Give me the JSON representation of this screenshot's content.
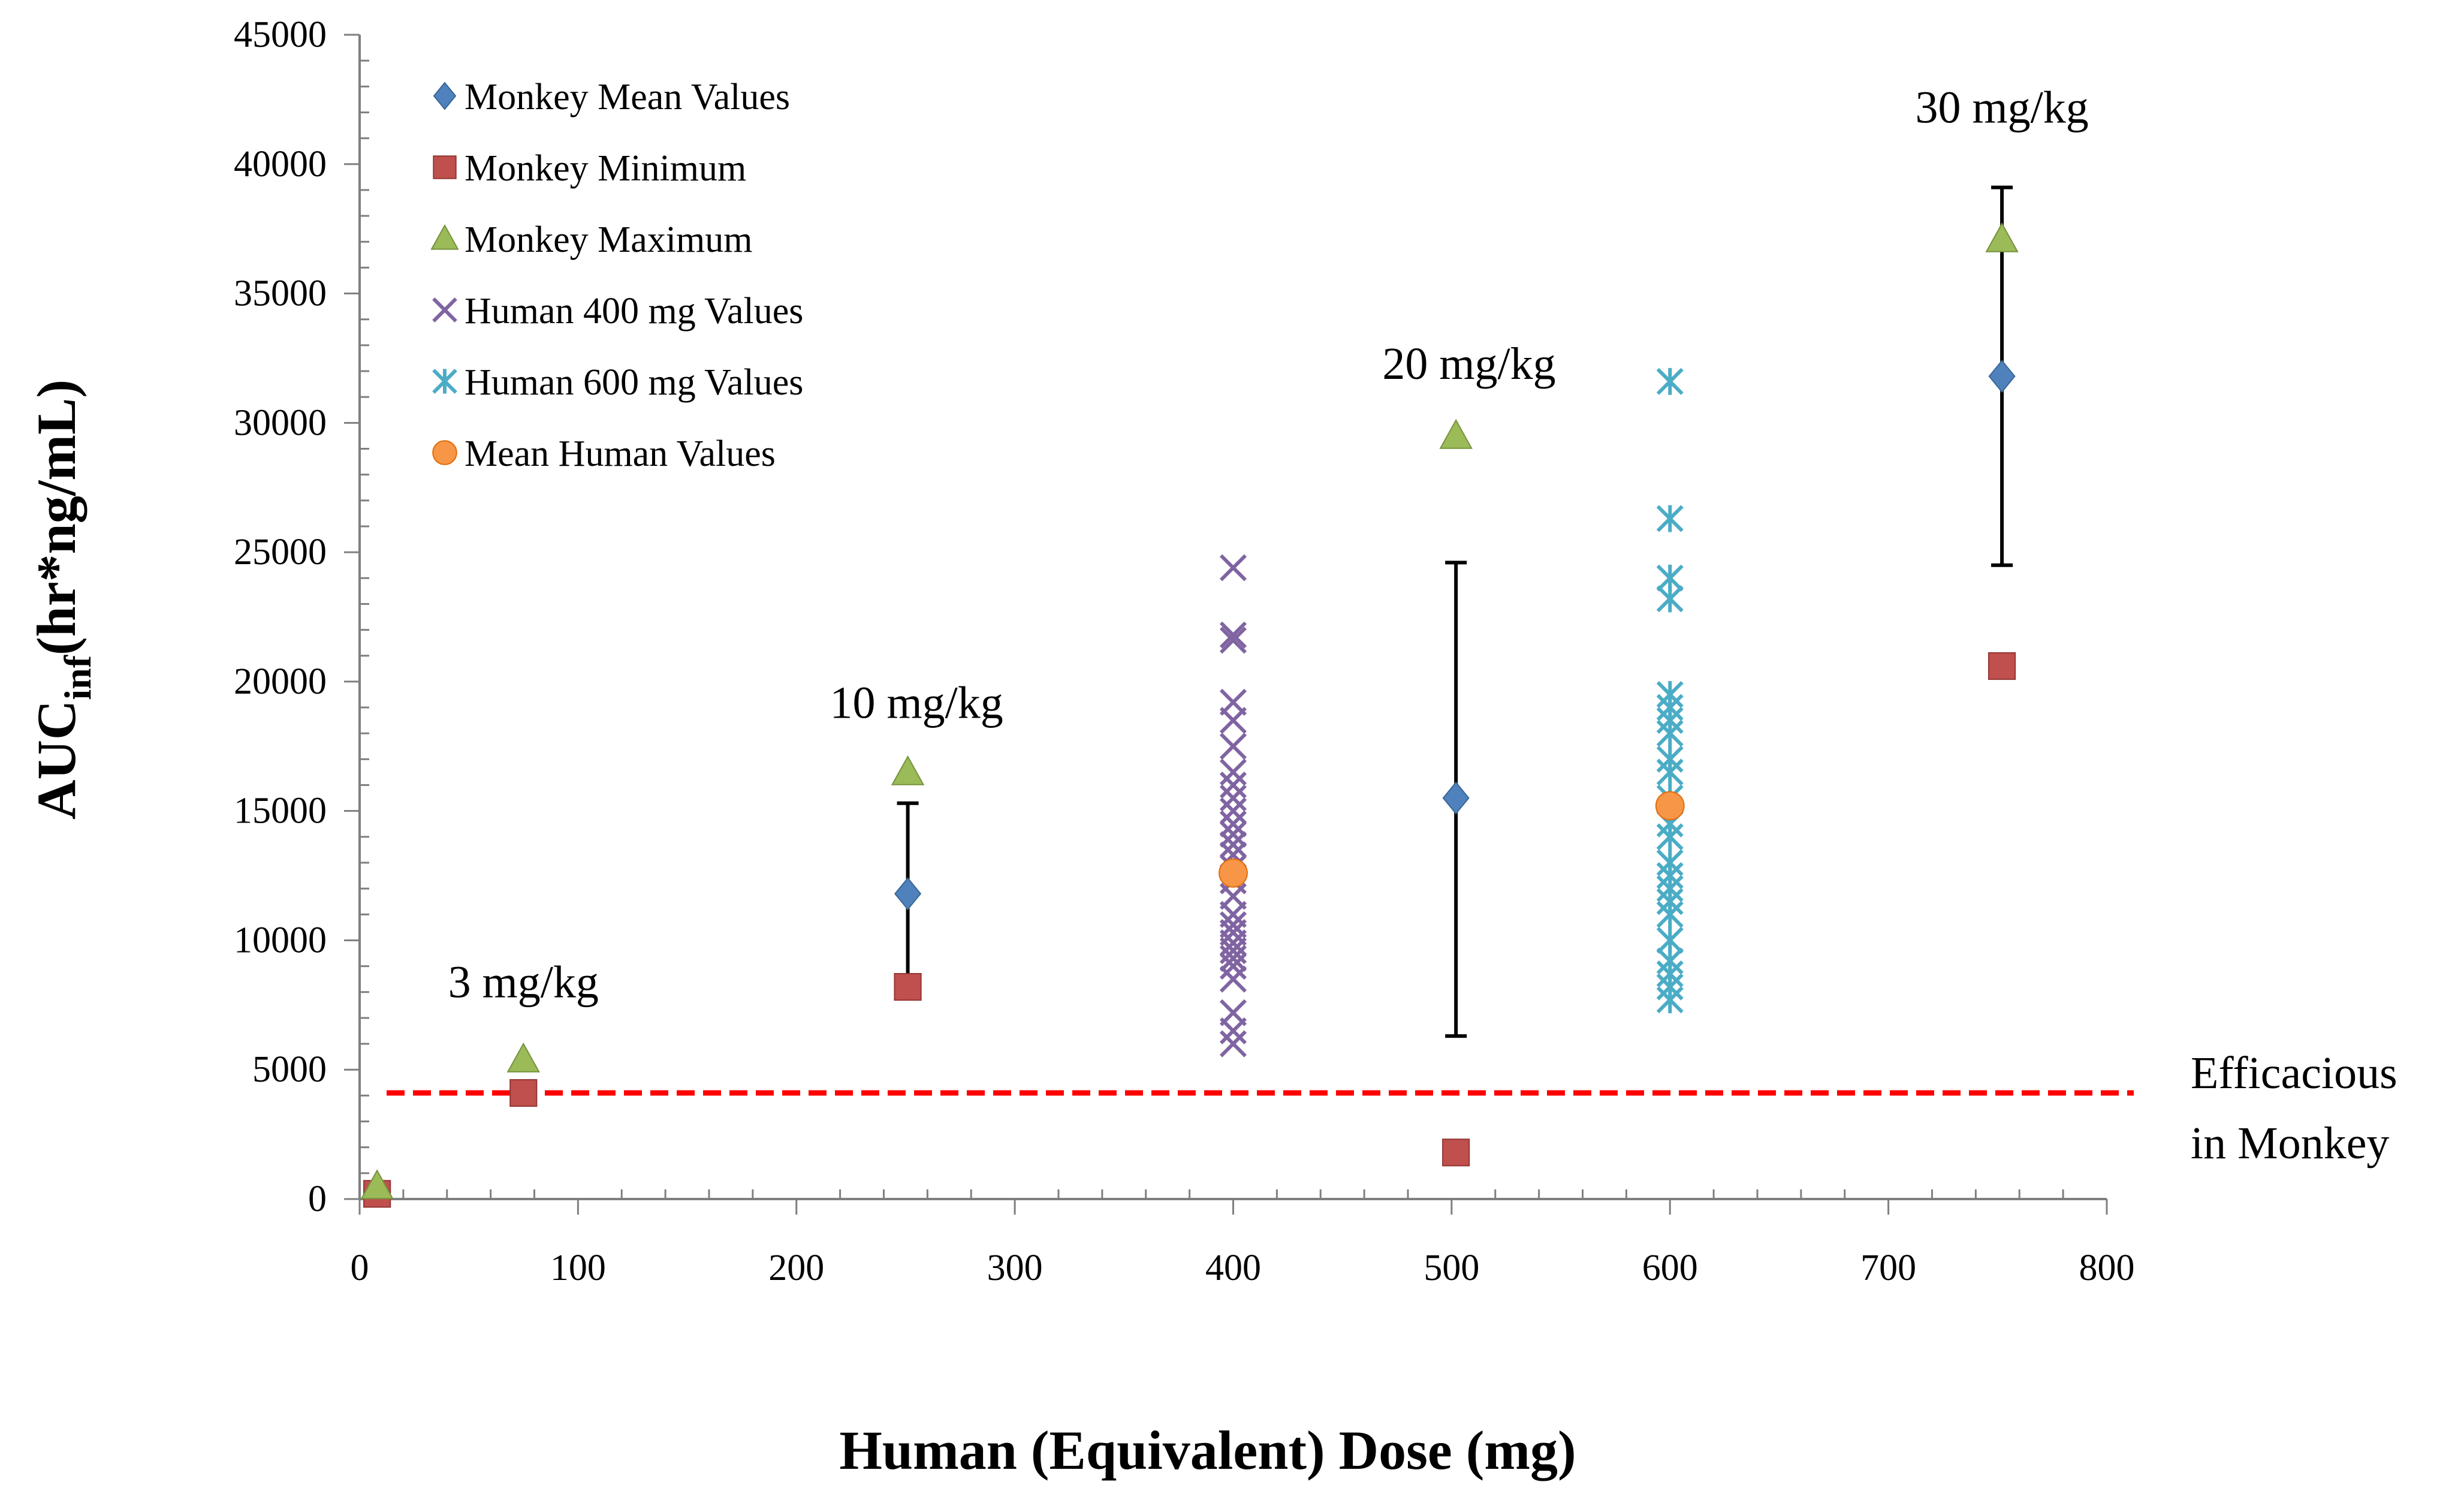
{
  "chart_data": {
    "type": "scatter",
    "title": "",
    "xlabel": "Human (Equivalent) Dose (mg)",
    "ylabel_main": "AUC",
    "ylabel_sub": "inf",
    "ylabel_rest": "(hr*ng/mL)",
    "xlim": [
      0,
      800
    ],
    "ylim": [
      0,
      45000
    ],
    "x_ticks": [
      0,
      100,
      200,
      300,
      400,
      500,
      600,
      700,
      800
    ],
    "y_ticks": [
      0,
      5000,
      10000,
      15000,
      20000,
      25000,
      30000,
      35000,
      40000,
      45000
    ],
    "x_minor_step": 20,
    "y_minor_step": 1000,
    "grid": false,
    "legend_position": "top-left",
    "series": [
      {
        "name": "Monkey Mean Values",
        "marker": "diamond",
        "color": "#4F81BD",
        "points": [
          [
            251,
            11800
          ],
          [
            502,
            15500
          ],
          [
            752,
            31800
          ]
        ]
      },
      {
        "name": "Monkey Minimum",
        "marker": "square",
        "color": "#C0504D",
        "points": [
          [
            8,
            200
          ],
          [
            75,
            4100
          ],
          [
            251,
            8200
          ],
          [
            502,
            1800
          ],
          [
            752,
            20600
          ]
        ]
      },
      {
        "name": "Monkey Maximum",
        "marker": "triangle",
        "color": "#9BBB59",
        "points": [
          [
            8,
            500
          ],
          [
            75,
            5400
          ],
          [
            251,
            16500
          ],
          [
            502,
            29500
          ],
          [
            752,
            37100
          ]
        ]
      },
      {
        "name": "Human 400 mg Values",
        "marker": "x",
        "color": "#8064A2",
        "points": [
          [
            400,
            6000
          ],
          [
            400,
            6500
          ],
          [
            400,
            7200
          ],
          [
            400,
            8500
          ],
          [
            400,
            9000
          ],
          [
            400,
            9300
          ],
          [
            400,
            9600
          ],
          [
            400,
            9900
          ],
          [
            400,
            10300
          ],
          [
            400,
            10600
          ],
          [
            400,
            11000
          ],
          [
            400,
            11700
          ],
          [
            400,
            12300
          ],
          [
            400,
            12800
          ],
          [
            400,
            13300
          ],
          [
            400,
            13700
          ],
          [
            400,
            14100
          ],
          [
            400,
            14500
          ],
          [
            400,
            15000
          ],
          [
            400,
            15500
          ],
          [
            400,
            16000
          ],
          [
            400,
            16500
          ],
          [
            400,
            17500
          ],
          [
            400,
            18500
          ],
          [
            400,
            19200
          ],
          [
            400,
            21600
          ],
          [
            400,
            21800
          ],
          [
            400,
            24400
          ]
        ]
      },
      {
        "name": "Human 600 mg Values",
        "marker": "asterisk",
        "color": "#4BACC6",
        "points": [
          [
            600,
            7700
          ],
          [
            600,
            8200
          ],
          [
            600,
            8700
          ],
          [
            600,
            9200
          ],
          [
            600,
            10000
          ],
          [
            600,
            11000
          ],
          [
            600,
            11500
          ],
          [
            600,
            12000
          ],
          [
            600,
            12500
          ],
          [
            600,
            13000
          ],
          [
            600,
            14000
          ],
          [
            600,
            14500
          ],
          [
            600,
            15500
          ],
          [
            600,
            16500
          ],
          [
            600,
            17000
          ],
          [
            600,
            18000
          ],
          [
            600,
            18500
          ],
          [
            600,
            19000
          ],
          [
            600,
            19500
          ],
          [
            600,
            23200
          ],
          [
            600,
            24000
          ],
          [
            600,
            26300
          ],
          [
            600,
            31600
          ]
        ]
      },
      {
        "name": "Mean Human Values",
        "marker": "circle",
        "color": "#F79646",
        "points": [
          [
            400,
            12600
          ],
          [
            600,
            15200
          ]
        ]
      }
    ],
    "error_bars": [
      {
        "x": 251,
        "low": 8200,
        "high": 15300
      },
      {
        "x": 502,
        "low": 6300,
        "high": 24600
      },
      {
        "x": 752,
        "low": 24500,
        "high": 39100
      }
    ],
    "reference_line": {
      "y": 4100,
      "color": "#FF0000",
      "style": "dashed",
      "label_line1": "Efficacious",
      "label_line2": "in Monkey"
    },
    "annotations": [
      {
        "text": "3 mg/kg",
        "x": 75,
        "y": 7800
      },
      {
        "text": "10 mg/kg",
        "x": 255,
        "y": 18600
      },
      {
        "text": "20 mg/kg",
        "x": 508,
        "y": 31700
      },
      {
        "text": "30 mg/kg",
        "x": 752,
        "y": 41600
      }
    ]
  }
}
